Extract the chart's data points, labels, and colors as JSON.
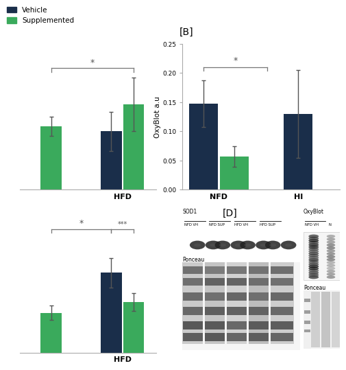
{
  "vehicle_color": "#1a2e4a",
  "supplemented_color": "#3aaa5c",
  "panel_A": {
    "nfd_sup_val": 0.13,
    "nfd_sup_err": 0.02,
    "hfd_veh_val": 0.12,
    "hfd_veh_err": 0.04,
    "hfd_sup_val": 0.175,
    "hfd_sup_err": 0.055,
    "ylim": [
      0,
      0.3
    ]
  },
  "panel_B": {
    "nfd_veh_val": 0.147,
    "nfd_veh_err": 0.04,
    "nfd_sup_val": 0.057,
    "nfd_sup_err": 0.018,
    "hfd_veh_val": 0.13,
    "hfd_veh_err": 0.075,
    "ylabel": "OxyBlot a.u",
    "ylim": [
      0,
      0.25
    ],
    "yticks": [
      0.0,
      0.05,
      0.1,
      0.15,
      0.2,
      0.25
    ]
  },
  "panel_C": {
    "nfd_sup_val": 0.46,
    "nfd_sup_err": 0.02,
    "hfd_veh_val": 0.57,
    "hfd_veh_err": 0.04,
    "hfd_sup_val": 0.49,
    "hfd_sup_err": 0.025,
    "ylim": [
      0.35,
      0.75
    ]
  },
  "legend_vehicle": "Vehicle",
  "legend_supplemented": "Supplemented",
  "background_color": "#ffffff",
  "gray_color": "#888888"
}
